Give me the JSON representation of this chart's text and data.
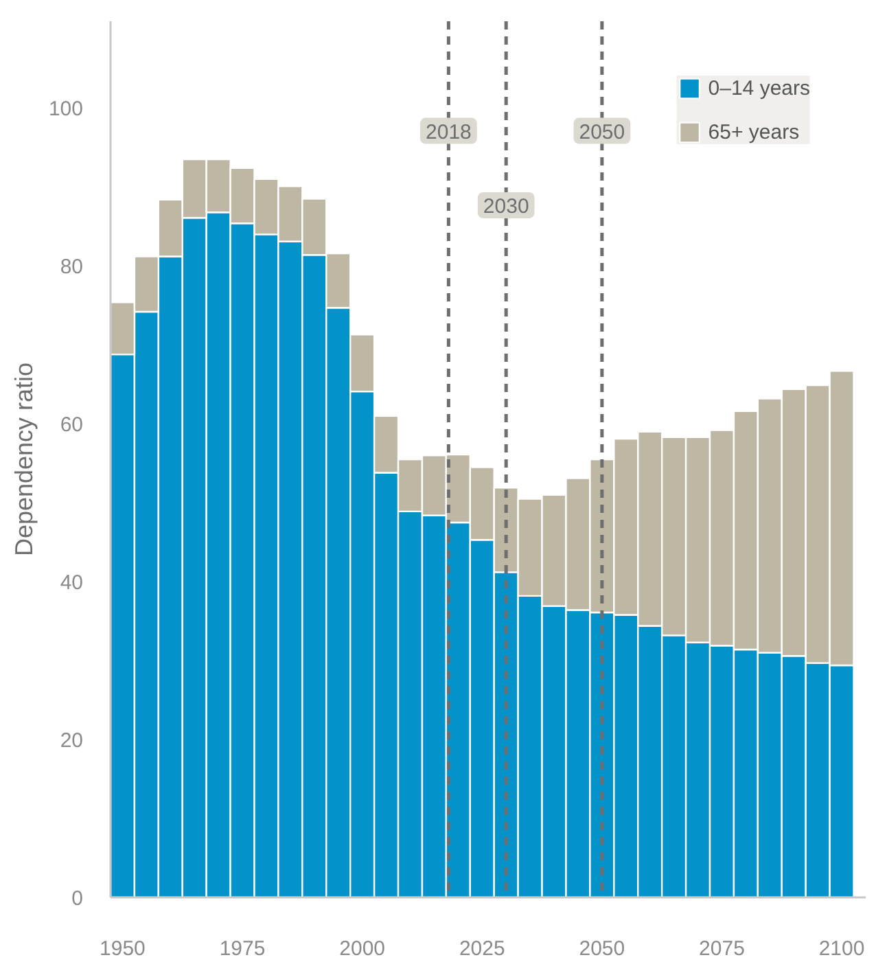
{
  "chart_data": {
    "type": "bar",
    "stacked": true,
    "ylabel": "Dependency ratio",
    "x": [
      1950,
      1955,
      1960,
      1965,
      1970,
      1975,
      1980,
      1985,
      1990,
      1995,
      2000,
      2005,
      2010,
      2015,
      2020,
      2025,
      2030,
      2035,
      2040,
      2045,
      2050,
      2055,
      2060,
      2065,
      2070,
      2075,
      2080,
      2085,
      2090,
      2095,
      2100
    ],
    "series": [
      {
        "name": "0–14 years",
        "color": "#0392c9",
        "values": [
          68.8,
          74.2,
          81.2,
          86.1,
          86.8,
          85.4,
          84.0,
          83.1,
          81.4,
          74.7,
          64.1,
          53.8,
          48.9,
          48.4,
          47.5,
          45.3,
          41.2,
          38.2,
          36.9,
          36.4,
          36.1,
          35.8,
          34.4,
          33.2,
          32.3,
          31.9,
          31.4,
          31.0,
          30.6,
          29.7,
          29.4
        ]
      },
      {
        "name": "65+ years",
        "color": "#beb7a4",
        "values": [
          6.6,
          7.0,
          7.2,
          7.4,
          6.7,
          7.0,
          7.0,
          7.0,
          7.1,
          6.9,
          7.2,
          7.2,
          6.6,
          7.6,
          8.6,
          9.2,
          10.7,
          12.3,
          14.1,
          16.7,
          19.4,
          22.3,
          24.6,
          25.1,
          26.0,
          27.3,
          30.2,
          32.2,
          33.8,
          35.2,
          37.3
        ]
      }
    ],
    "xlim": [
      1947.5,
      2105
    ],
    "xticks": [
      1950,
      1975,
      2000,
      2025,
      2050,
      2075,
      2100
    ],
    "ylim": [
      0,
      111
    ],
    "yticks": [
      0,
      20,
      40,
      60,
      80,
      100
    ],
    "ref_lines": [
      {
        "axis": "x",
        "value": 2018,
        "label": "2018",
        "color": "#6d6e70",
        "line_style": "dashed"
      },
      {
        "axis": "x",
        "value": 2030,
        "label": "2030",
        "color": "#6d6e70",
        "line_style": "dashed"
      },
      {
        "axis": "x",
        "value": 2050,
        "label": "2050",
        "color": "#6d6e70",
        "line_style": "dashed"
      }
    ],
    "grid": false,
    "legend": "top right"
  }
}
